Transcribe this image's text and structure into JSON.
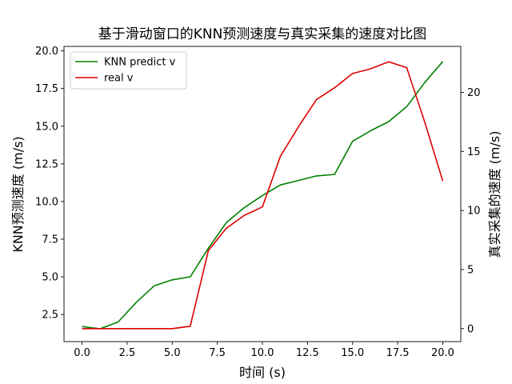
{
  "chart_data": {
    "type": "line",
    "title": "基于滑动窗口的KNN预测速度与真实采集的速度对比图",
    "xlabel": "时间 (s)",
    "ylabel_left": "KNN预测速度 (m/s)",
    "ylabel_right": "真实采集的速度 (m/s)",
    "xlim": [
      -1,
      21
    ],
    "ylim_left": [
      0.7,
      20.3
    ],
    "ylim_right": [
      -1.1,
      23.9
    ],
    "x_ticks": [
      0,
      2.5,
      5,
      7.5,
      10,
      12.5,
      15,
      17.5,
      20
    ],
    "x_tick_labels": [
      "0.0",
      "2.5",
      "5.0",
      "7.5",
      "10.0",
      "12.5",
      "15.0",
      "17.5",
      "20.0"
    ],
    "y_left_ticks": [
      2.5,
      5,
      7.5,
      10,
      12.5,
      15,
      17.5,
      20
    ],
    "y_left_tick_labels": [
      "2.5",
      "5.0",
      "7.5",
      "10.0",
      "12.5",
      "15.0",
      "17.5",
      "20.0"
    ],
    "y_right_ticks": [
      0,
      5,
      10,
      15,
      20
    ],
    "y_right_tick_labels": [
      "0",
      "5",
      "10",
      "15",
      "20"
    ],
    "legend_position": "top-left",
    "grid": false,
    "x": [
      0,
      1,
      2,
      3,
      4,
      5,
      6,
      7,
      8,
      9,
      10,
      11,
      12,
      13,
      14,
      15,
      16,
      17,
      18,
      19,
      20
    ],
    "series": [
      {
        "name": "KNN predict v",
        "axis": "left",
        "color": "#008000",
        "values": [
          1.7,
          1.55,
          2.0,
          3.3,
          4.4,
          4.8,
          5.0,
          6.9,
          8.6,
          9.6,
          10.4,
          11.1,
          11.4,
          11.7,
          11.8,
          14.0,
          14.7,
          15.3,
          16.3,
          17.9,
          19.3
        ]
      },
      {
        "name": "real v",
        "axis": "right",
        "color": "#dd0000",
        "values": [
          0,
          0,
          0,
          0,
          0,
          0,
          0.2,
          6.6,
          8.5,
          9.6,
          10.3,
          14.6,
          17.1,
          19.4,
          20.4,
          21.6,
          22.0,
          22.6,
          22.1,
          17.5,
          12.5
        ]
      }
    ]
  }
}
